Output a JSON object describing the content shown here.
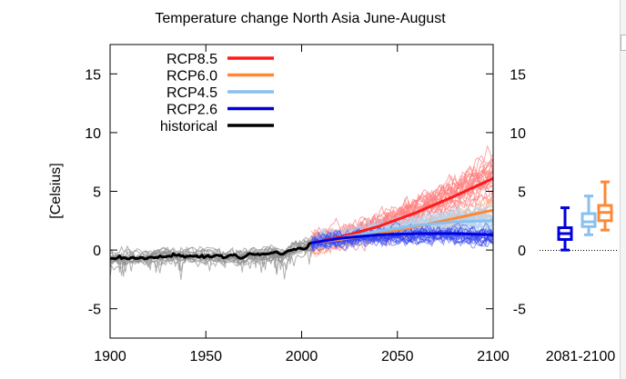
{
  "chart_data": {
    "type": "line",
    "title": "Temperature change North Asia June-August",
    "ylabel": "[Celsius]",
    "xlabel": "",
    "xlim": [
      1900,
      2100
    ],
    "ylim": [
      -7.5,
      17.5
    ],
    "x_ticks": [
      "1900",
      "1950",
      "2000",
      "2050",
      "2100"
    ],
    "y_ticks": [
      "-5",
      "0",
      "5",
      "10",
      "15"
    ],
    "y_tick_values": [
      -5,
      0,
      5,
      10,
      15
    ],
    "x_tick_values": [
      1900,
      1950,
      2000,
      2050,
      2100
    ],
    "grid": false,
    "legend_position": "top-left",
    "series": [
      {
        "name": "RCP8.5",
        "color": "#ff1a1a",
        "ensemble_color": "#ff8080",
        "x": [
          2005,
          2020,
          2040,
          2060,
          2080,
          2100
        ],
        "values": [
          0.6,
          1.1,
          2.0,
          3.2,
          4.6,
          6.1
        ]
      },
      {
        "name": "RCP6.0",
        "color": "#ff8833",
        "ensemble_color": "#ffb37a",
        "x": [
          2005,
          2020,
          2040,
          2060,
          2080,
          2100
        ],
        "values": [
          0.6,
          0.9,
          1.4,
          2.0,
          2.7,
          3.4
        ]
      },
      {
        "name": "RCP4.5",
        "color": "#88c0f0",
        "ensemble_color": "#b0d4f5",
        "x": [
          2005,
          2020,
          2040,
          2060,
          2080,
          2100
        ],
        "values": [
          0.6,
          1.0,
          1.6,
          2.1,
          2.4,
          2.5
        ]
      },
      {
        "name": "RCP2.6",
        "color": "#0000dd",
        "ensemble_color": "#3344ee",
        "x": [
          2005,
          2020,
          2040,
          2060,
          2080,
          2100
        ],
        "values": [
          0.6,
          1.0,
          1.3,
          1.4,
          1.4,
          1.3
        ]
      },
      {
        "name": "historical",
        "color": "#000000",
        "ensemble_color": "#909090",
        "x": [
          1900,
          1910,
          1920,
          1930,
          1940,
          1950,
          1960,
          1970,
          1980,
          1985,
          1990,
          1995,
          2000,
          2005
        ],
        "values": [
          -0.8,
          -0.6,
          -0.6,
          -0.5,
          -0.5,
          -0.5,
          -0.6,
          -0.5,
          -0.4,
          -0.2,
          -0.5,
          0.1,
          0.2,
          0.6
        ]
      }
    ],
    "boxes_label": "2081-2100",
    "boxes": [
      {
        "series": "RCP2.6",
        "color": "#0000dd",
        "min": 0.0,
        "q1": 0.9,
        "median": 1.4,
        "q3": 1.9,
        "max": 3.6
      },
      {
        "series": "RCP4.5",
        "color": "#88c0f0",
        "min": 1.3,
        "q1": 2.0,
        "median": 2.4,
        "q3": 3.1,
        "max": 4.6
      },
      {
        "series": "RCP6.0",
        "color": "#ff8833",
        "min": 1.7,
        "q1": 2.5,
        "median": 3.2,
        "q3": 3.8,
        "max": 5.8
      }
    ]
  }
}
